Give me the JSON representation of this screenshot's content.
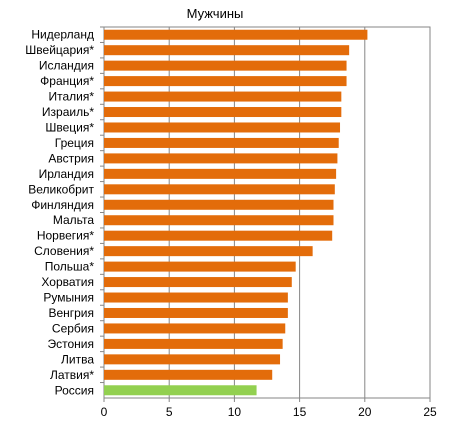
{
  "chart_data": {
    "type": "bar",
    "orientation": "horizontal",
    "title": "Мужчины",
    "xlabel": "",
    "ylabel": "",
    "xlim": [
      0,
      25
    ],
    "xticks": [
      0,
      5,
      10,
      15,
      20,
      25
    ],
    "grid": "vertical",
    "categories": [
      "Нидерланд",
      "Швейцария*",
      "Исландия",
      "Франция*",
      "Италия*",
      "Израиль*",
      "Швеция*",
      "Греция",
      "Австрия",
      "Ирландия",
      "Великобрит",
      "Финляндия",
      "Мальта",
      "Норвегия*",
      "Словения*",
      "Польша*",
      "Хорватия",
      "Румыния",
      "Венгрия",
      "Сербия",
      "Эстония",
      "Литва",
      "Латвия*",
      "Россия"
    ],
    "values": [
      20.2,
      18.8,
      18.6,
      18.6,
      18.2,
      18.2,
      18.1,
      18.0,
      17.9,
      17.8,
      17.7,
      17.6,
      17.6,
      17.5,
      16.0,
      14.7,
      14.4,
      14.1,
      14.1,
      13.9,
      13.7,
      13.5,
      12.9,
      11.7
    ],
    "colors": {
      "default": "#E36C0A",
      "highlight": "#92D050",
      "highlight_index": 23
    }
  }
}
